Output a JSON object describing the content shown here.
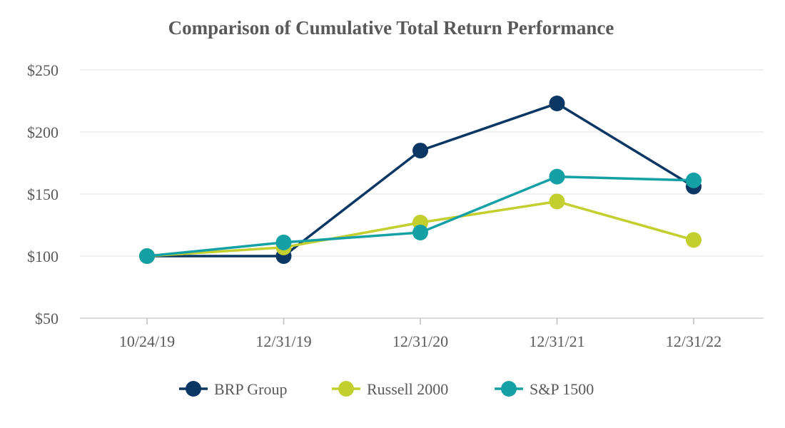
{
  "chart_data": {
    "type": "line",
    "title": "Comparison of Cumulative Total Return Performance",
    "xlabel": "",
    "ylabel": "",
    "categories": [
      "10/24/19",
      "12/31/19",
      "12/31/20",
      "12/31/21",
      "12/31/22"
    ],
    "ylim": [
      50,
      250
    ],
    "yticks": [
      50,
      100,
      150,
      200,
      250
    ],
    "ytick_labels": [
      "$50",
      "$100",
      "$150",
      "$200",
      "$250"
    ],
    "grid": true,
    "legend_position": "bottom",
    "series": [
      {
        "name": "BRP Group",
        "color": "#0b3764",
        "values": [
          100,
          100,
          185,
          223,
          156
        ]
      },
      {
        "name": "Russell 2000",
        "color": "#c2cf2e",
        "values": [
          100,
          107,
          127,
          144,
          113
        ]
      },
      {
        "name": "S&P 1500",
        "color": "#14a0a5",
        "values": [
          100,
          111,
          119,
          164,
          161
        ]
      }
    ]
  }
}
